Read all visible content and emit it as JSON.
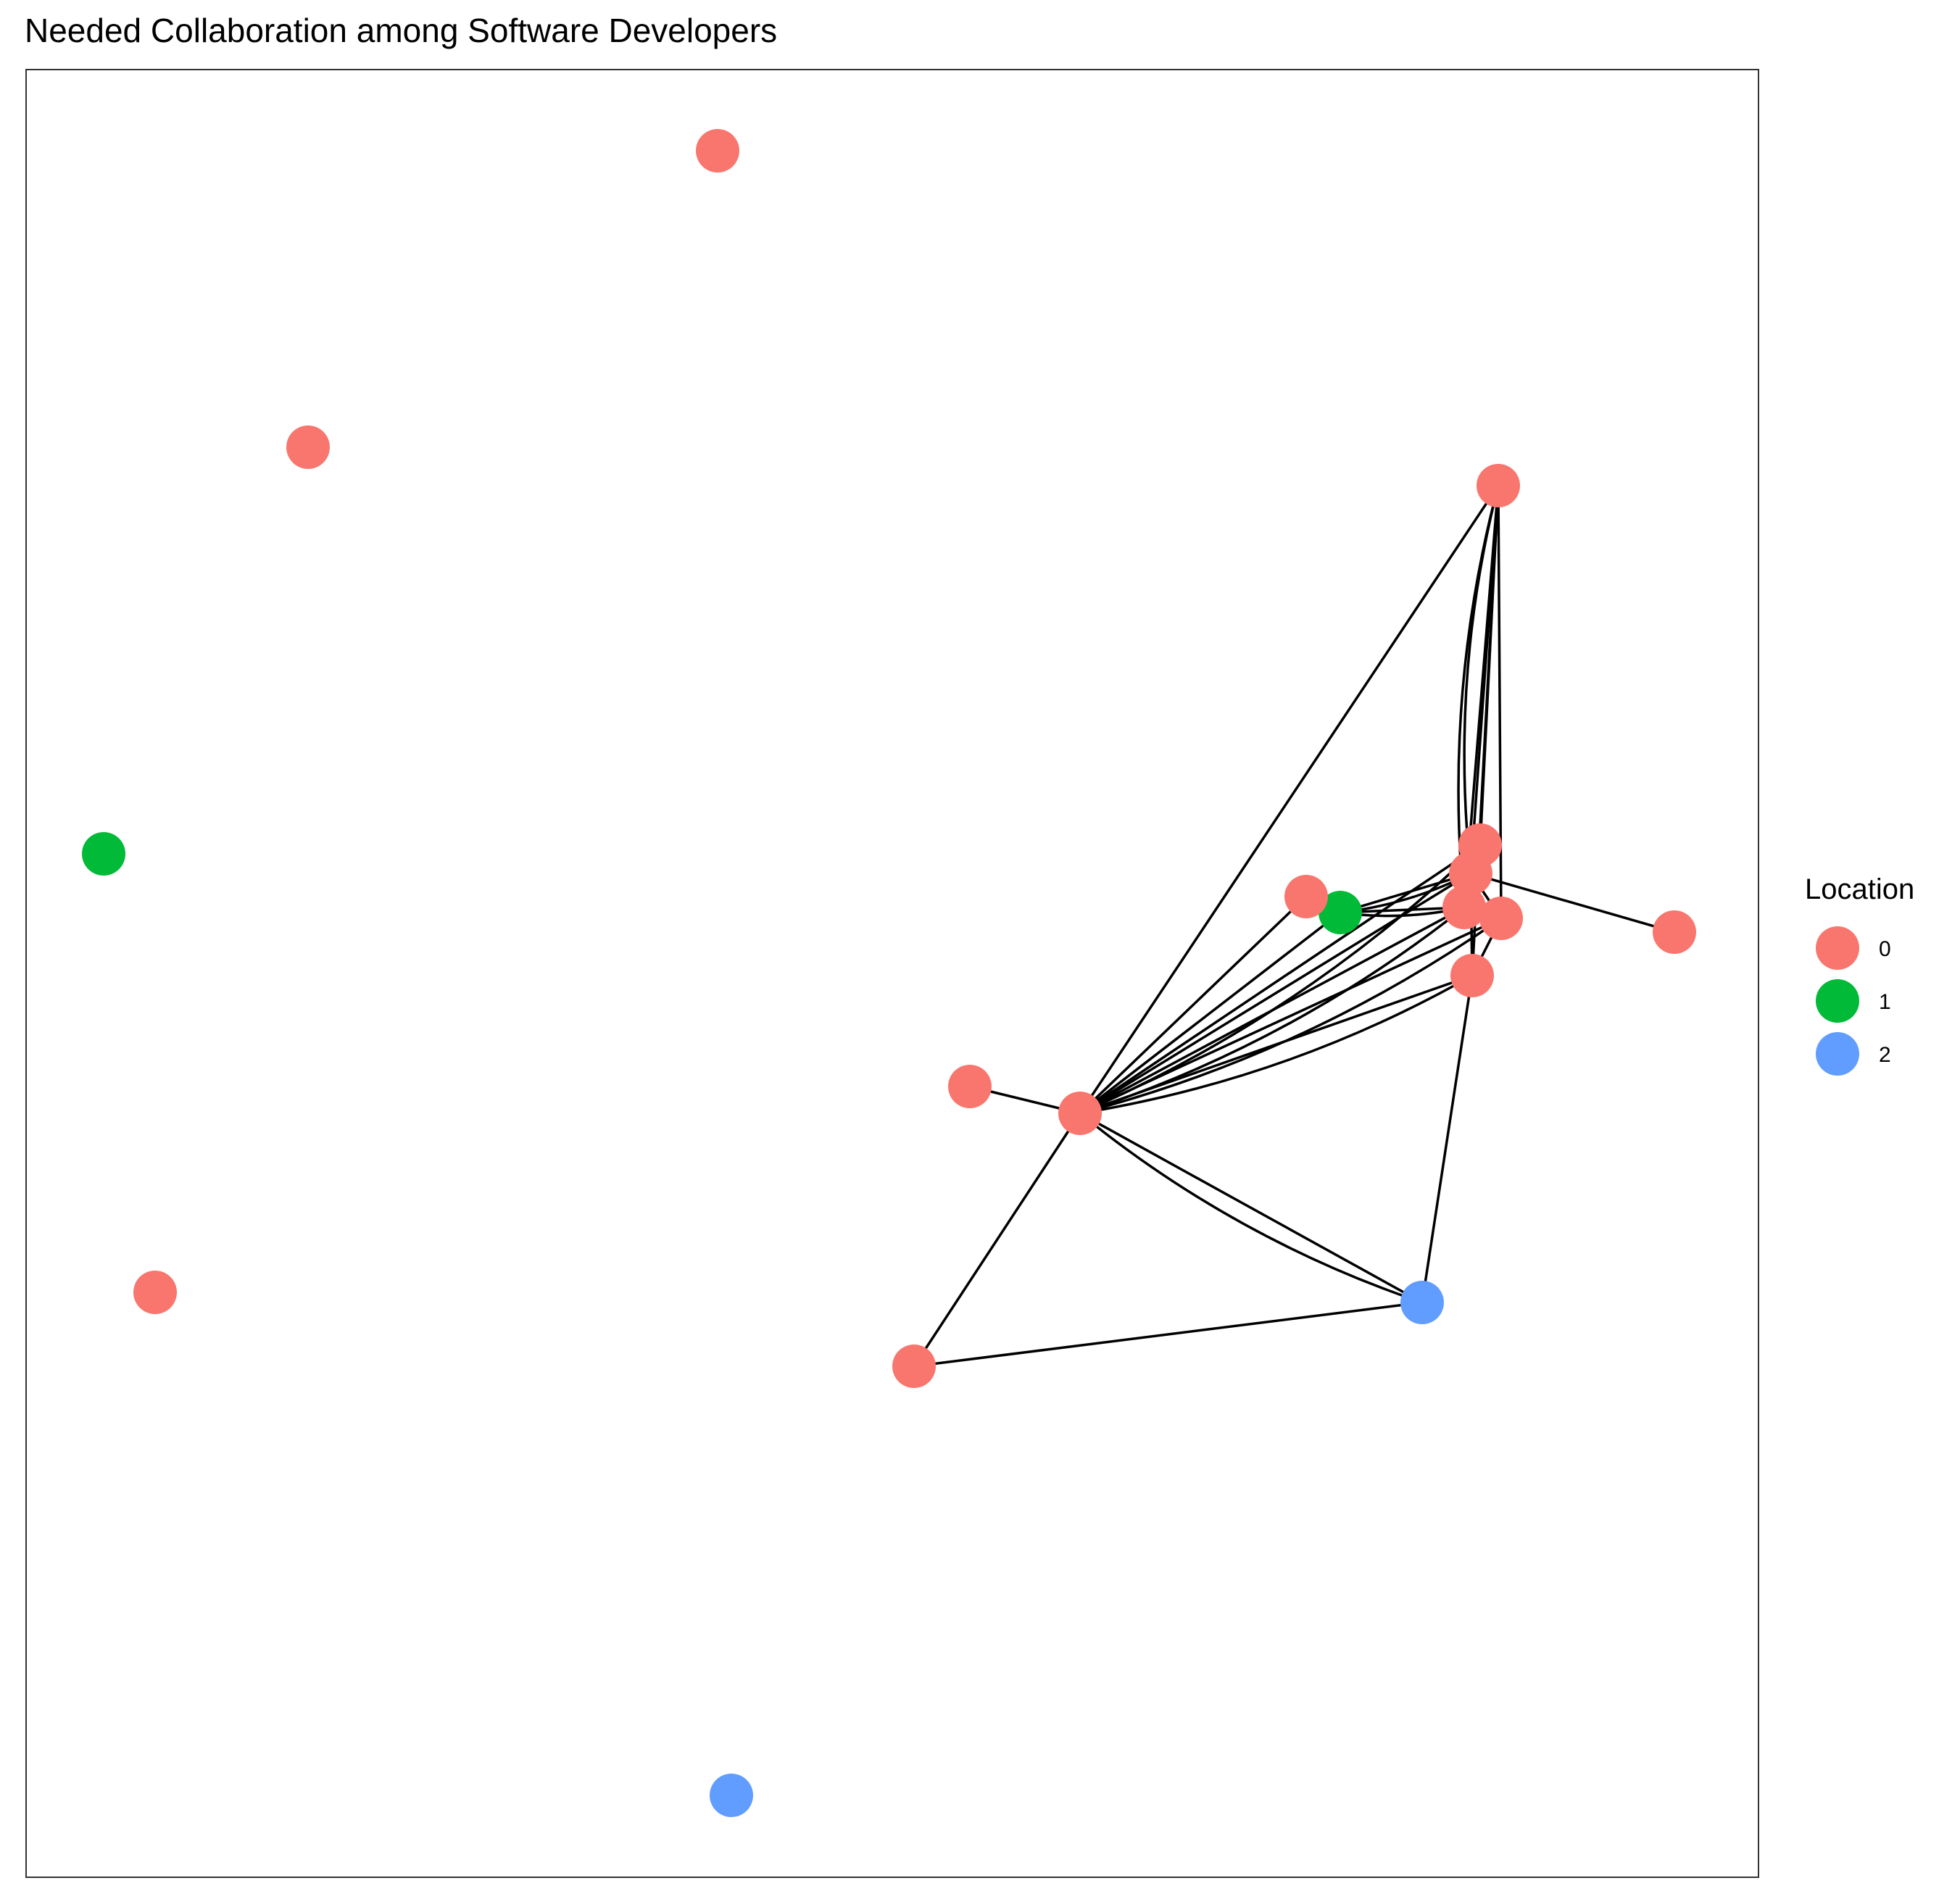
{
  "title": "Needed Collaboration among Software Developers",
  "legend": {
    "title": "Location",
    "items": [
      {
        "label": "0",
        "color": "#F8766D"
      },
      {
        "label": "1",
        "color": "#00BA38"
      },
      {
        "label": "2",
        "color": "#619CFF"
      }
    ]
  },
  "nodes": [
    {
      "id": "n1",
      "location": "0"
    },
    {
      "id": "n2",
      "location": "0"
    },
    {
      "id": "n3",
      "location": "1"
    },
    {
      "id": "n4",
      "location": "0"
    },
    {
      "id": "n5",
      "location": "2"
    },
    {
      "id": "n6",
      "location": "0"
    },
    {
      "id": "n7",
      "location": "0"
    },
    {
      "id": "n8",
      "location": "0"
    },
    {
      "id": "n9",
      "location": "0"
    },
    {
      "id": "n10",
      "location": "0"
    },
    {
      "id": "n11",
      "location": "1"
    },
    {
      "id": "n12",
      "location": "0"
    },
    {
      "id": "n13",
      "location": "0"
    },
    {
      "id": "n14",
      "location": "0"
    },
    {
      "id": "n15",
      "location": "0"
    },
    {
      "id": "n16",
      "location": "0"
    },
    {
      "id": "n17",
      "location": "0"
    },
    {
      "id": "n18",
      "location": "2"
    }
  ],
  "edges": [
    {
      "source": "n7",
      "target": "n15"
    },
    {
      "source": "n7",
      "target": "n8"
    },
    {
      "source": "n7",
      "target": "n9"
    },
    {
      "source": "n7",
      "target": "n12"
    },
    {
      "source": "n7",
      "target": "n12"
    },
    {
      "source": "n7",
      "target": "n13"
    },
    {
      "source": "n7",
      "target": "n13"
    },
    {
      "source": "n7",
      "target": "n14"
    },
    {
      "source": "n7",
      "target": "n11"
    },
    {
      "source": "n7",
      "target": "n16"
    },
    {
      "source": "n7",
      "target": "n16"
    },
    {
      "source": "n7",
      "target": "n18"
    },
    {
      "source": "n7",
      "target": "n18"
    },
    {
      "source": "n7",
      "target": "n6"
    },
    {
      "source": "n7",
      "target": "n17"
    },
    {
      "source": "n6",
      "target": "n18"
    },
    {
      "source": "n18",
      "target": "n16"
    },
    {
      "source": "n7",
      "target": "n17"
    },
    {
      "source": "n8",
      "target": "n17"
    },
    {
      "source": "n8",
      "target": "n12"
    },
    {
      "source": "n8",
      "target": "n12"
    },
    {
      "source": "n8",
      "target": "n13"
    },
    {
      "source": "n8",
      "target": "n14"
    },
    {
      "source": "n8",
      "target": "n14"
    },
    {
      "source": "n8",
      "target": "n16"
    },
    {
      "source": "n11",
      "target": "n12"
    },
    {
      "source": "n11",
      "target": "n12"
    },
    {
      "source": "n11",
      "target": "n14"
    },
    {
      "source": "n11",
      "target": "n14"
    },
    {
      "source": "n14",
      "target": "n10"
    },
    {
      "source": "n14",
      "target": "n13"
    },
    {
      "source": "n12",
      "target": "n13"
    },
    {
      "source": "n16",
      "target": "n14"
    },
    {
      "source": "n16",
      "target": "n13"
    }
  ]
}
